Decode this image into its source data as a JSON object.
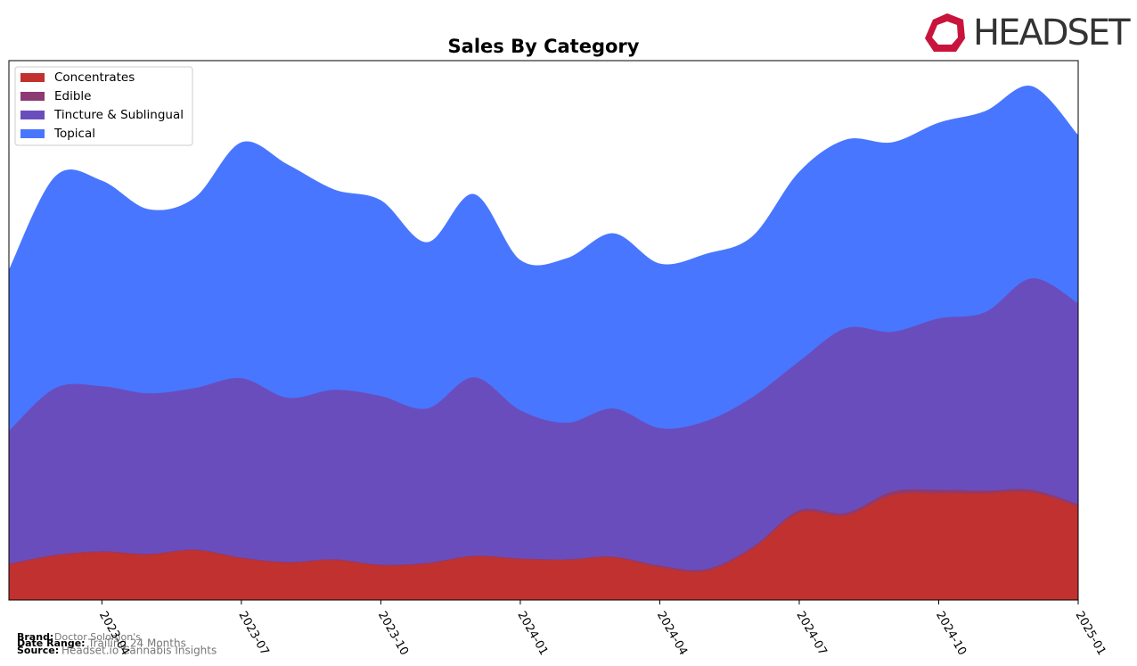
{
  "chart_data": {
    "type": "stacked-area",
    "title": "Sales By Category",
    "x": [
      "2023-02",
      "2023-03",
      "2023-04",
      "2023-05",
      "2023-06",
      "2023-07",
      "2023-08",
      "2023-09",
      "2023-10",
      "2023-11",
      "2023-12",
      "2024-01",
      "2024-02",
      "2024-03",
      "2024-04",
      "2024-05",
      "2024-06",
      "2024-07",
      "2024-08",
      "2024-09",
      "2024-10",
      "2024-11",
      "2024-12",
      "2025-01"
    ],
    "xticks": [
      "2023-04",
      "2023-07",
      "2023-10",
      "2024-01",
      "2024-04",
      "2024-07",
      "2024-10",
      "2025-01"
    ],
    "series": [
      {
        "name": "Concentrates",
        "color": "#c0312f",
        "values": [
          40,
          50,
          54,
          51,
          56,
          47,
          42,
          45,
          39,
          41,
          49,
          46,
          45,
          48,
          37,
          33,
          58,
          98,
          95,
          118,
          120,
          120,
          121,
          105
        ]
      },
      {
        "name": "Edible",
        "color": "#8e3a72",
        "values": [
          1,
          1,
          1,
          1,
          1,
          1,
          1,
          1,
          1,
          1,
          1,
          1,
          1,
          1,
          2,
          2,
          2,
          3,
          3,
          4,
          4,
          3,
          3,
          3
        ]
      },
      {
        "name": "Tincture & Sublingual",
        "color": "#6a4dbd",
        "values": [
          149,
          187,
          185,
          180,
          181,
          201,
          184,
          190,
          189,
          173,
          200,
          166,
          153,
          166,
          154,
          166,
          168,
          167,
          207,
          179,
          192,
          200,
          237,
          225
        ]
      },
      {
        "name": "Topical",
        "color": "#4876ff",
        "values": [
          180,
          237,
          230,
          206,
          213,
          264,
          261,
          224,
          219,
          186,
          205,
          168,
          184,
          196,
          184,
          187,
          180,
          212,
          211,
          212,
          219,
          225,
          215,
          188
        ]
      }
    ],
    "legend": "upper left"
  },
  "logo": "HEADSET",
  "footer": {
    "brand_label": "Brand:",
    "brand": "Doctor Solomon's",
    "range_label": "Date Range:",
    "range": "Trailing 24 Months",
    "source_label": "Source:",
    "source": "Headset.io Cannabis Insights"
  }
}
